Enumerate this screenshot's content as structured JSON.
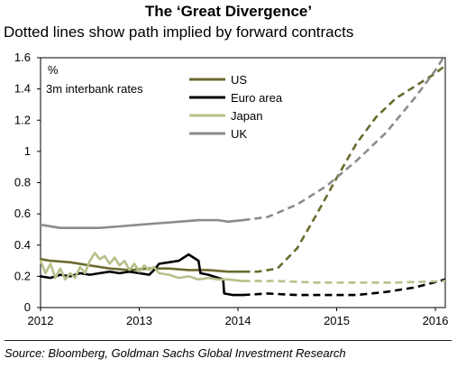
{
  "title": "The ‘Great Divergence’",
  "subtitle": "Dotted lines show path implied by forward contracts",
  "source": "Source: Bloomberg, Goldman Sachs Global Investment Research",
  "chart_data": {
    "type": "line",
    "unit_label": "%",
    "inner_label": "3m interbank rates",
    "x_ticks": [
      "2012",
      "2013",
      "2014",
      "2015",
      "2016"
    ],
    "xlim": [
      2012,
      2016.1
    ],
    "y_ticks": [
      "0",
      "0.2",
      "0.4",
      "0.6",
      "0.8",
      "1",
      "1.2",
      "1.4",
      "1.6"
    ],
    "ylim": [
      0,
      1.6
    ],
    "legend_position": "top-center",
    "series": [
      {
        "name": "US",
        "color": "#6b6b2f",
        "actual": [
          [
            2012.0,
            0.31
          ],
          [
            2012.1,
            0.3
          ],
          [
            2012.3,
            0.29
          ],
          [
            2012.5,
            0.27
          ],
          [
            2012.7,
            0.25
          ],
          [
            2012.9,
            0.24
          ],
          [
            2013.1,
            0.25
          ],
          [
            2013.3,
            0.25
          ],
          [
            2013.5,
            0.24
          ],
          [
            2013.7,
            0.24
          ],
          [
            2013.9,
            0.23
          ],
          [
            2014.05,
            0.23
          ]
        ],
        "forward": [
          [
            2014.05,
            0.23
          ],
          [
            2014.2,
            0.23
          ],
          [
            2014.4,
            0.25
          ],
          [
            2014.6,
            0.38
          ],
          [
            2014.8,
            0.6
          ],
          [
            2015.0,
            0.83
          ],
          [
            2015.2,
            1.05
          ],
          [
            2015.4,
            1.22
          ],
          [
            2015.6,
            1.34
          ],
          [
            2015.8,
            1.42
          ],
          [
            2016.0,
            1.5
          ],
          [
            2016.1,
            1.55
          ]
        ]
      },
      {
        "name": "Euro area",
        "color": "#000000",
        "actual": [
          [
            2012.0,
            0.2
          ],
          [
            2012.1,
            0.19
          ],
          [
            2012.2,
            0.21
          ],
          [
            2012.3,
            0.2
          ],
          [
            2012.4,
            0.22
          ],
          [
            2012.5,
            0.21
          ],
          [
            2012.6,
            0.22
          ],
          [
            2012.7,
            0.23
          ],
          [
            2012.8,
            0.22
          ],
          [
            2012.9,
            0.23
          ],
          [
            2013.0,
            0.22
          ],
          [
            2013.1,
            0.21
          ],
          [
            2013.15,
            0.24
          ],
          [
            2013.2,
            0.28
          ],
          [
            2013.3,
            0.29
          ],
          [
            2013.4,
            0.3
          ],
          [
            2013.45,
            0.32
          ],
          [
            2013.5,
            0.34
          ],
          [
            2013.55,
            0.32
          ],
          [
            2013.6,
            0.3
          ],
          [
            2013.62,
            0.22
          ],
          [
            2013.7,
            0.21
          ],
          [
            2013.75,
            0.2
          ],
          [
            2013.8,
            0.19
          ],
          [
            2013.85,
            0.18
          ],
          [
            2013.86,
            0.09
          ],
          [
            2013.95,
            0.08
          ],
          [
            2014.05,
            0.08
          ]
        ],
        "forward": [
          [
            2014.05,
            0.08
          ],
          [
            2014.3,
            0.09
          ],
          [
            2014.6,
            0.08
          ],
          [
            2014.9,
            0.08
          ],
          [
            2015.2,
            0.08
          ],
          [
            2015.5,
            0.1
          ],
          [
            2015.8,
            0.13
          ],
          [
            2016.1,
            0.18
          ]
        ]
      },
      {
        "name": "Japan",
        "color": "#b8c08a",
        "actual": [
          [
            2012.0,
            0.3
          ],
          [
            2012.05,
            0.22
          ],
          [
            2012.1,
            0.28
          ],
          [
            2012.15,
            0.19
          ],
          [
            2012.2,
            0.25
          ],
          [
            2012.25,
            0.18
          ],
          [
            2012.3,
            0.22
          ],
          [
            2012.35,
            0.19
          ],
          [
            2012.4,
            0.26
          ],
          [
            2012.45,
            0.22
          ],
          [
            2012.5,
            0.3
          ],
          [
            2012.55,
            0.35
          ],
          [
            2012.6,
            0.31
          ],
          [
            2012.65,
            0.33
          ],
          [
            2012.7,
            0.28
          ],
          [
            2012.75,
            0.32
          ],
          [
            2012.8,
            0.27
          ],
          [
            2012.85,
            0.3
          ],
          [
            2012.9,
            0.24
          ],
          [
            2012.95,
            0.28
          ],
          [
            2013.0,
            0.23
          ],
          [
            2013.05,
            0.27
          ],
          [
            2013.1,
            0.24
          ],
          [
            2013.15,
            0.26
          ],
          [
            2013.2,
            0.22
          ],
          [
            2013.3,
            0.21
          ],
          [
            2013.4,
            0.19
          ],
          [
            2013.5,
            0.2
          ],
          [
            2013.6,
            0.18
          ],
          [
            2013.7,
            0.19
          ],
          [
            2013.8,
            0.18
          ],
          [
            2013.9,
            0.18
          ],
          [
            2014.05,
            0.17
          ]
        ],
        "forward": [
          [
            2014.05,
            0.17
          ],
          [
            2014.4,
            0.17
          ],
          [
            2014.8,
            0.16
          ],
          [
            2015.2,
            0.16
          ],
          [
            2015.6,
            0.16
          ],
          [
            2016.1,
            0.17
          ]
        ]
      },
      {
        "name": "UK",
        "color": "#8c8c8c",
        "actual": [
          [
            2012.0,
            0.53
          ],
          [
            2012.2,
            0.51
          ],
          [
            2012.4,
            0.51
          ],
          [
            2012.6,
            0.51
          ],
          [
            2012.8,
            0.52
          ],
          [
            2013.0,
            0.53
          ],
          [
            2013.2,
            0.54
          ],
          [
            2013.4,
            0.55
          ],
          [
            2013.6,
            0.56
          ],
          [
            2013.8,
            0.56
          ],
          [
            2013.9,
            0.55
          ],
          [
            2014.05,
            0.56
          ]
        ],
        "forward": [
          [
            2014.05,
            0.56
          ],
          [
            2014.3,
            0.58
          ],
          [
            2014.6,
            0.66
          ],
          [
            2014.9,
            0.78
          ],
          [
            2015.2,
            0.94
          ],
          [
            2015.5,
            1.12
          ],
          [
            2015.8,
            1.35
          ],
          [
            2016.0,
            1.52
          ],
          [
            2016.1,
            1.62
          ]
        ]
      }
    ]
  }
}
